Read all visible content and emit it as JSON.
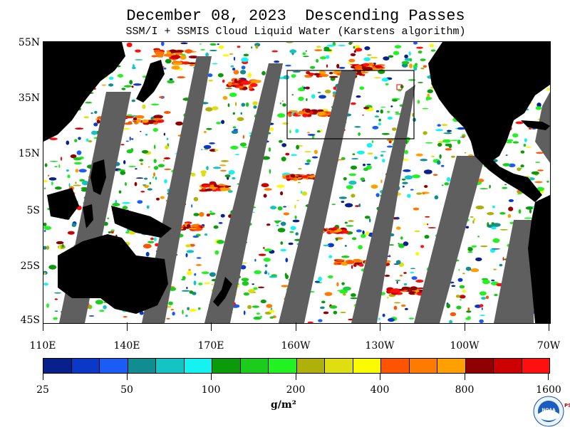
{
  "title": "December 08, 2023  Descending Passes",
  "subtitle": "SSM/I + SSMIS Cloud Liquid Water (Karstens algorithm)",
  "map": {
    "region": "Pacific Ocean",
    "lat_labels": [
      "55N",
      "35N",
      "15N",
      "5S",
      "25S",
      "45S"
    ],
    "lon_labels": [
      "110E",
      "140E",
      "170E",
      "160W",
      "130W",
      "100W",
      "70W"
    ],
    "lat_range": [
      -45,
      55
    ],
    "lon_range_east": [
      110,
      290
    ],
    "colors": {
      "land": "#000000",
      "no_data_swath_gap": "#5f5f5f",
      "clear": "#ffffff"
    }
  },
  "legend": {
    "units": "g/m²",
    "tick_labels": [
      "25",
      "50",
      "100",
      "200",
      "400",
      "800",
      "1600"
    ],
    "colors": [
      "#08208c",
      "#0a39c7",
      "#1b5cf5",
      "#118c90",
      "#14c4c4",
      "#14f2f2",
      "#0a9a0a",
      "#1ccc1c",
      "#22f222",
      "#b0b00a",
      "#dede10",
      "#fafa00",
      "#ff5500",
      "#ff7a00",
      "#ffa000",
      "#900000",
      "#cc0000",
      "#ff1010"
    ]
  },
  "logo": {
    "name": "noaa-logo",
    "text": "NOAA",
    "side_text": "PSL"
  }
}
